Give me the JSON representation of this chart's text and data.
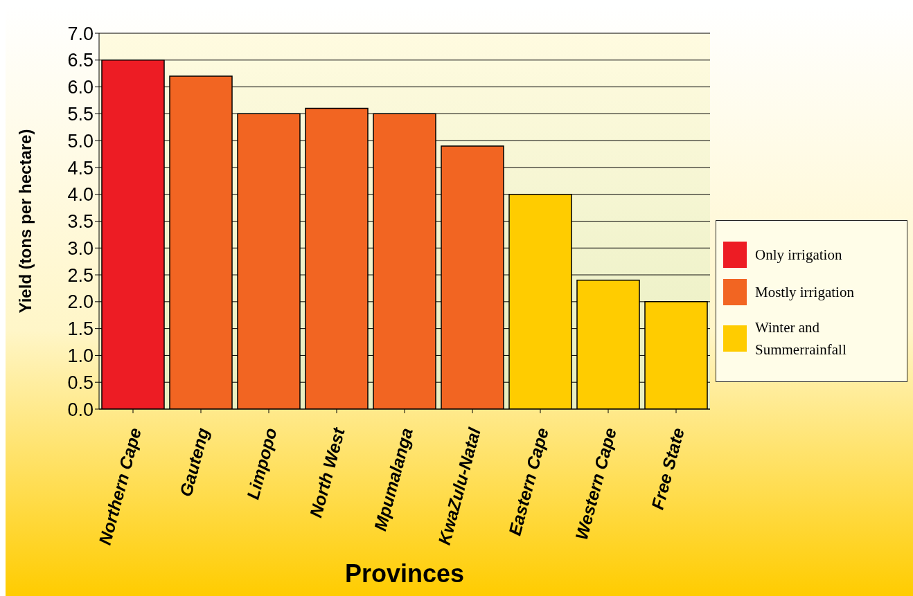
{
  "chart_data": {
    "type": "bar",
    "stacked": true,
    "xlabel": "Provinces",
    "ylabel": "Yield (tons per hectare)",
    "categories": [
      "Northern Cape",
      "Gauteng",
      "Limpopo",
      "North West",
      "Mpumalanga",
      "KwaZulu-Natal",
      "Eastern Cape",
      "Western Cape",
      "Free State"
    ],
    "series": [
      {
        "name": "Only irrigation",
        "color": "#ed1c24",
        "values": [
          6.5,
          null,
          null,
          null,
          null,
          null,
          null,
          null,
          null
        ]
      },
      {
        "name": "Mostly irrigation",
        "color": "#f26522",
        "values": [
          null,
          6.2,
          5.5,
          5.6,
          5.5,
          4.9,
          null,
          null,
          null
        ]
      },
      {
        "name": "Winter and Summerrainfall",
        "color": "#ffcc00",
        "values": [
          null,
          null,
          null,
          null,
          null,
          null,
          4.0,
          2.4,
          2.0
        ]
      }
    ],
    "ylim": [
      0,
      7
    ],
    "yticks": [
      {
        "value": 0,
        "label": "0.0"
      },
      {
        "value": 0.5,
        "label": "0.5"
      },
      {
        "value": 1,
        "label": "1.0"
      },
      {
        "value": 1.5,
        "label": "1.5"
      },
      {
        "value": 2,
        "label": "2.0"
      },
      {
        "value": 2.5,
        "label": "2.5"
      },
      {
        "value": 3,
        "label": "3.0"
      },
      {
        "value": 3.5,
        "label": "3.5"
      },
      {
        "value": 4,
        "label": "4.0"
      },
      {
        "value": 4.5,
        "label": "4.5"
      },
      {
        "value": 5,
        "label": "5.0"
      },
      {
        "value": 5.5,
        "label": "5.5"
      },
      {
        "value": 6,
        "label": "6.0"
      },
      {
        "value": 6.5,
        "label": "6.5"
      },
      {
        "value": 7,
        "label": "7.0"
      }
    ],
    "grid": "y",
    "legend": "right"
  }
}
